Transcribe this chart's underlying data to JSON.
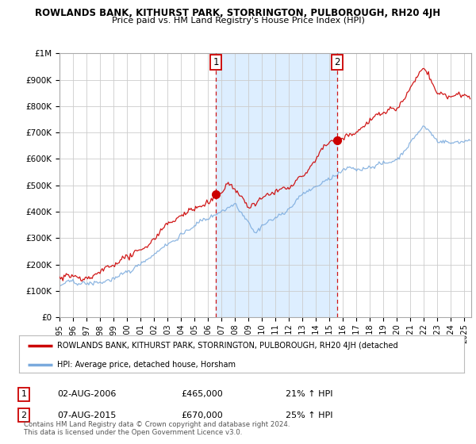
{
  "title": "ROWLANDS BANK, KITHURST PARK, STORRINGTON, PULBOROUGH, RH20 4JH",
  "subtitle": "Price paid vs. HM Land Registry's House Price Index (HPI)",
  "ylabel_max": 1000000,
  "yticks": [
    0,
    100000,
    200000,
    300000,
    400000,
    500000,
    600000,
    700000,
    800000,
    900000,
    1000000
  ],
  "ytick_labels": [
    "£0",
    "£100K",
    "£200K",
    "£300K",
    "£400K",
    "£500K",
    "£600K",
    "£700K",
    "£800K",
    "£900K",
    "£1M"
  ],
  "xmin": 1995.0,
  "xmax": 2025.5,
  "sale1_date": 2006.58,
  "sale1_price": 465000,
  "sale2_date": 2015.58,
  "sale2_price": 670000,
  "red_line_color": "#cc0000",
  "blue_line_color": "#7aaadd",
  "vline_color": "#cc0000",
  "grid_color": "#cccccc",
  "bg_color": "#ffffff",
  "plot_bg_color": "#ffffff",
  "shade_color": "#ddeeff",
  "legend_label_red": "ROWLANDS BANK, KITHURST PARK, STORRINGTON, PULBOROUGH, RH20 4JH (detached",
  "legend_label_blue": "HPI: Average price, detached house, Horsham",
  "annot1_date": "02-AUG-2006",
  "annot1_price": "£465,000",
  "annot1_hpi": "21% ↑ HPI",
  "annot2_date": "07-AUG-2015",
  "annot2_price": "£670,000",
  "annot2_hpi": "25% ↑ HPI",
  "footer": "Contains HM Land Registry data © Crown copyright and database right 2024.\nThis data is licensed under the Open Government Licence v3.0."
}
